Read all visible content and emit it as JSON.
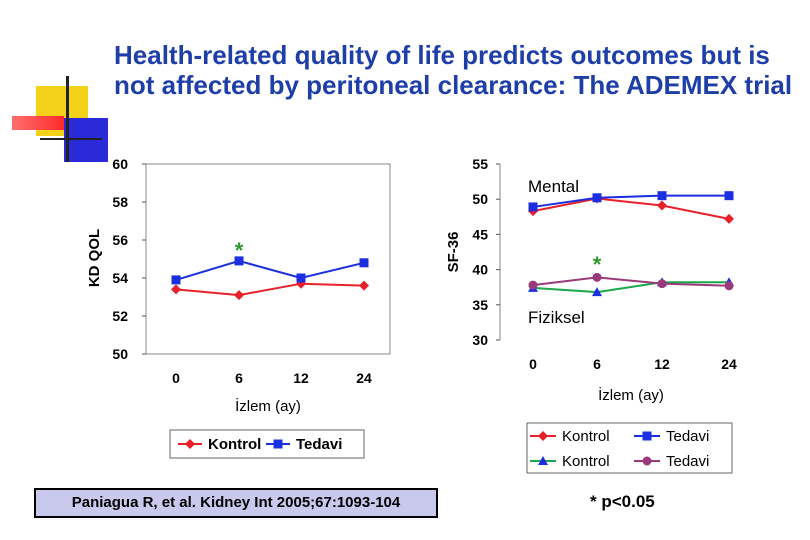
{
  "slide": {
    "title": "Health-related quality of life predicts outcomes but is not affected by peritoneal clearance: The ADEMEX trial",
    "citation": "Paniagua R, et al. Kidney Int 2005;67:1093-104",
    "p_note": "* p<0.05",
    "colors": {
      "kontrol": "#e8202a",
      "tedavi": "#1b2fe0",
      "kontrol2": "#1b2fe0",
      "tedavi2": "#9b3a7a",
      "accent": "#1f3fa8"
    }
  },
  "chart_data": [
    {
      "type": "line",
      "id": "kdqol",
      "title": "",
      "xlabel": "İzlem (ay)",
      "ylabel": "KD QOL",
      "categories": [
        "0",
        "6",
        "12",
        "24"
      ],
      "yticks": [
        "60",
        "58",
        "56",
        "54",
        "52",
        "50"
      ],
      "ylim": [
        50,
        60
      ],
      "series": [
        {
          "name": "Kontrol",
          "values": [
            53.4,
            53.1,
            53.7,
            53.6
          ],
          "color": "#e8202a",
          "marker": "diamond"
        },
        {
          "name": "Tedavi",
          "values": [
            53.9,
            54.9,
            54.0,
            54.8
          ],
          "color": "#1b2fe0",
          "marker": "square"
        }
      ],
      "annotation": "*",
      "legend": [
        "Kontrol",
        "Tedavi"
      ]
    },
    {
      "type": "line",
      "id": "sf36",
      "xlabel": "İzlem (ay)",
      "ylabel": "SF-36",
      "categories": [
        "0",
        "6",
        "12",
        "24"
      ],
      "yticks": [
        "55",
        "50",
        "45",
        "40",
        "35",
        "30"
      ],
      "ylim": [
        30,
        55
      ],
      "labels": {
        "mental": "Mental",
        "physical": "Fiziksel"
      },
      "series": [
        {
          "name": "Kontrol",
          "group": "Mental",
          "values": [
            48.3,
            50.1,
            49.1,
            47.2
          ],
          "color": "#e8202a",
          "marker": "diamond"
        },
        {
          "name": "Tedavi",
          "group": "Mental",
          "values": [
            48.9,
            50.2,
            50.5,
            50.5
          ],
          "color": "#1b2fe0",
          "marker": "square"
        },
        {
          "name": "Kontrol",
          "group": "Fiziksel",
          "values": [
            37.4,
            36.8,
            38.2,
            38.2
          ],
          "color": "#1b2fe0",
          "marker": "triangle",
          "line_color": "#1aa84a"
        },
        {
          "name": "Tedavi",
          "group": "Fiziksel",
          "values": [
            37.8,
            38.9,
            38.0,
            37.7
          ],
          "color": "#9b3a7a",
          "marker": "circle"
        }
      ],
      "annotation": "*",
      "legend": [
        "Kontrol",
        "Tedavi",
        "Kontrol",
        "Tedavi"
      ]
    }
  ]
}
